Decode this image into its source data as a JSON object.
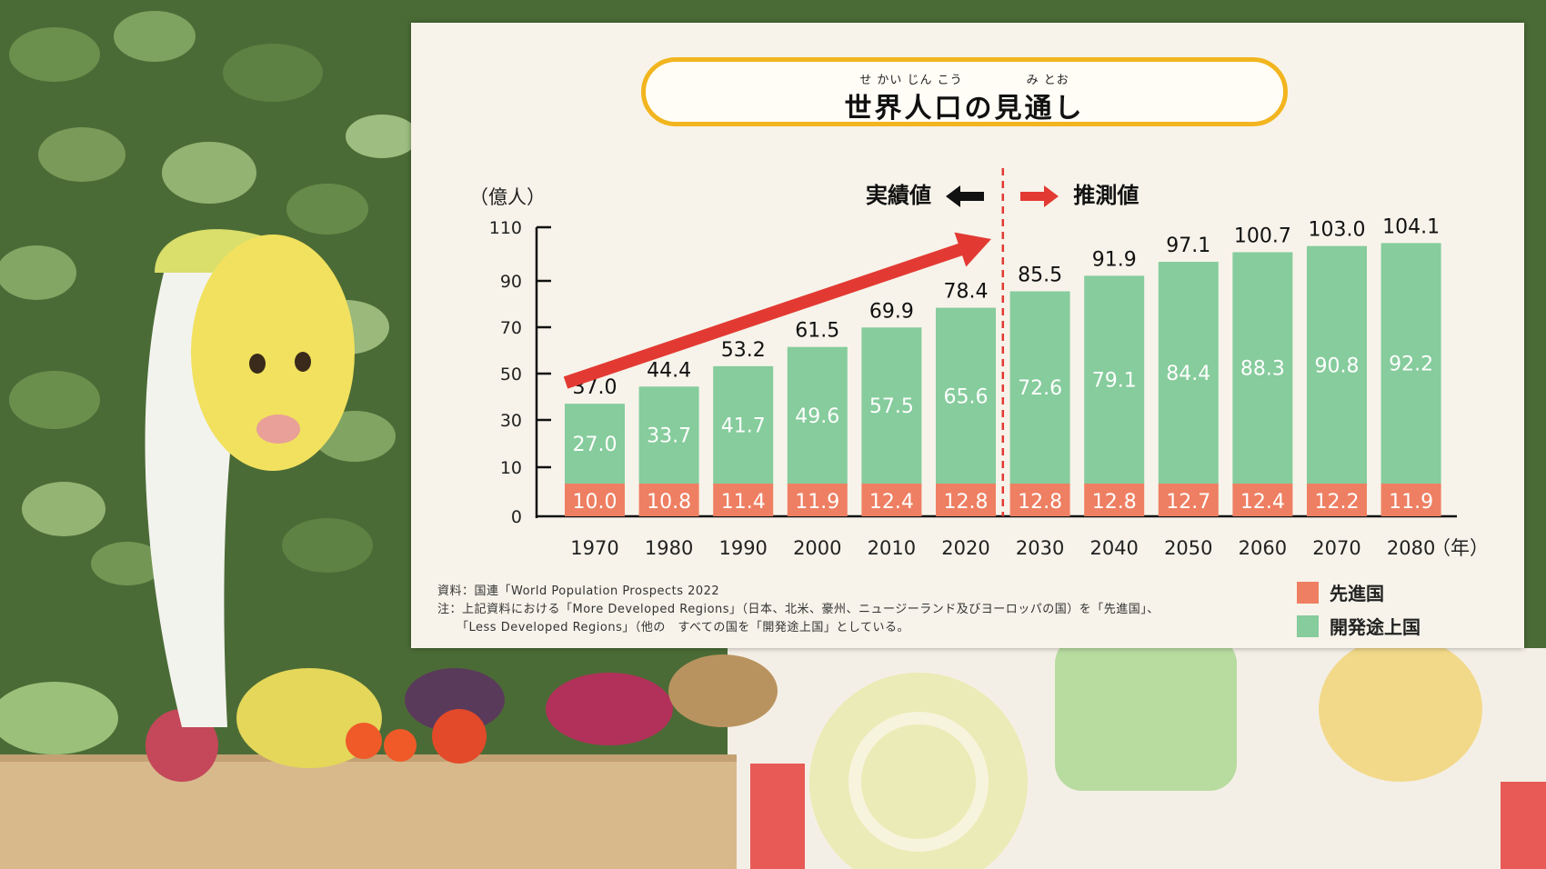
{
  "title": {
    "ruby": "せ かい じん こう　　　　　み とお",
    "text": "世界人口の見通し"
  },
  "tags": {
    "actual": "実績値",
    "forecast": "推測値"
  },
  "source_lines": [
    "資料：国連「World Population Prospects 2022",
    "注：上記資料における「More Developed Regions」（日本、北米、豪州、ニュージーランド及びヨーロッパの国）を「先進国」、",
    "「Less Developed Regions」（他の　すべての国を「開発途上国」としている。"
  ],
  "legend": [
    {
      "label": "先進国",
      "color": "#ee7f62"
    },
    {
      "label": "開発途上国",
      "color": "#86cc9c"
    }
  ],
  "chart_data": {
    "type": "bar",
    "stacked": true,
    "ylabel": "（億人）",
    "xlabel_unit": "（年）",
    "y_ticks": [
      0,
      10,
      30,
      50,
      70,
      90,
      110
    ],
    "categories": [
      "1970",
      "1980",
      "1990",
      "2000",
      "2010",
      "2020",
      "2030",
      "2040",
      "2050",
      "2060",
      "2070",
      "2080"
    ],
    "series": [
      {
        "name": "先進国",
        "color": "#ee7f62",
        "values": [
          10.0,
          10.8,
          11.4,
          11.9,
          12.4,
          12.8,
          12.8,
          12.8,
          12.7,
          12.4,
          12.2,
          11.9
        ],
        "labels": [
          "10.0",
          "10.8",
          "11.4",
          "11.9",
          "12.4",
          "12.8",
          "12.8",
          "12.8",
          "12.7",
          "12.4",
          "12.2",
          "11.9"
        ]
      },
      {
        "name": "開発途上国",
        "color": "#86cc9c",
        "values": [
          27.0,
          33.7,
          41.7,
          49.6,
          57.5,
          65.6,
          72.6,
          79.1,
          84.4,
          88.3,
          90.8,
          92.2
        ],
        "labels": [
          "27.0",
          "33.7",
          "41.7",
          "49.6",
          "57.5",
          "65.6",
          "72.6",
          "79.1",
          "84.4",
          "88.3",
          "90.8",
          "92.2"
        ]
      }
    ],
    "totals": [
      37.0,
      44.4,
      53.2,
      61.5,
      69.9,
      78.4,
      85.5,
      91.9,
      97.1,
      100.7,
      103.0,
      104.1
    ],
    "total_labels": [
      "37.0",
      "44.4",
      "53.2",
      "61.5",
      "69.9",
      "78.4",
      "85.5",
      "91.9",
      "97.1",
      "100.7",
      "103.0",
      "104.1"
    ],
    "forecast_start": "2030",
    "legend_position": "bottom-right"
  }
}
